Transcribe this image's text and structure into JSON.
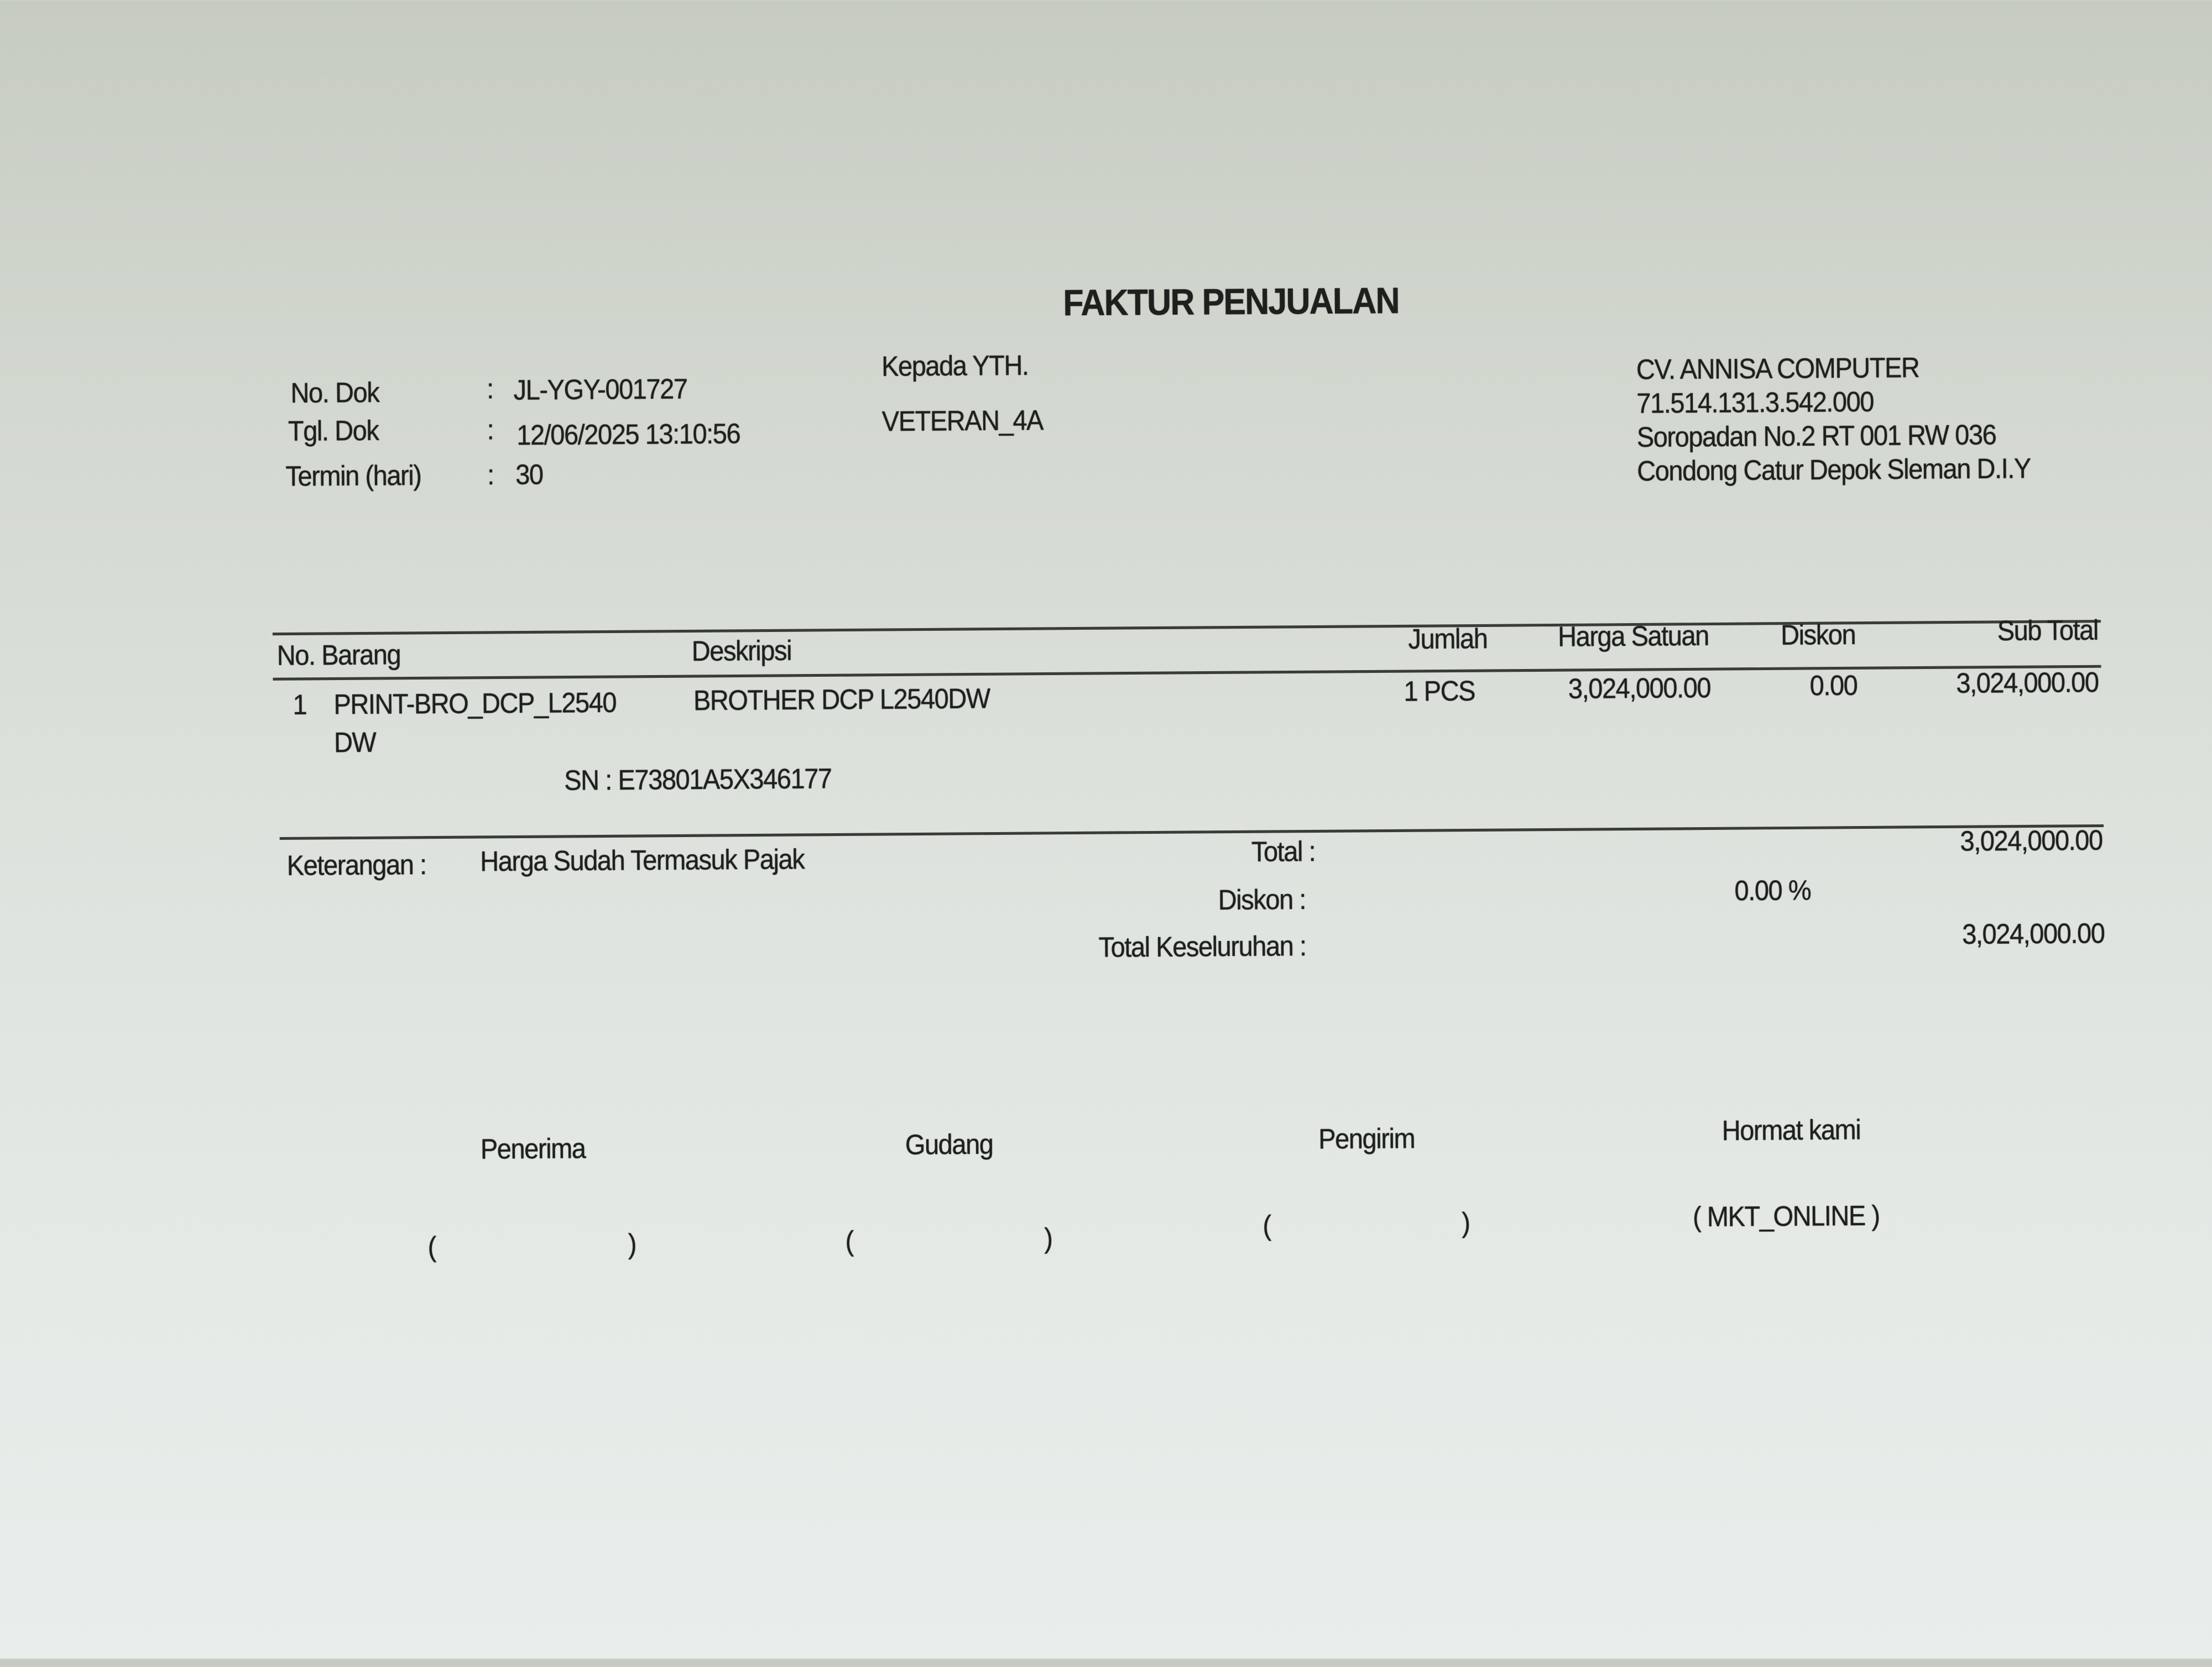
{
  "title": "FAKTUR PENJUALAN",
  "doc_info": {
    "no_dok_label": "No. Dok",
    "no_dok": "JL-YGY-001727",
    "tgl_dok_label": "Tgl. Dok",
    "tgl_dok": "12/06/2025 13:10:56",
    "termin_label": "Termin (hari)",
    "termin": "30",
    "separator": ":"
  },
  "recipient": {
    "label": "Kepada YTH.",
    "name": "VETERAN_4A"
  },
  "company": {
    "name": "CV. ANNISA COMPUTER",
    "tax_id": "71.514.131.3.542.000",
    "address_line1": "Soropadan No.2  RT 001 RW 036",
    "address_line2": "Condong Catur Depok Sleman D.I.Y"
  },
  "table": {
    "headers": {
      "no_barang": "No. Barang",
      "deskripsi": "Deskripsi",
      "jumlah": "Jumlah",
      "harga_satuan": "Harga Satuan",
      "diskon": "Diskon",
      "sub_total": "Sub Total"
    },
    "rows": [
      {
        "no": "1",
        "kode": "PRINT-BRO_DCP_L2540",
        "kode_cont": "DW",
        "deskripsi": "BROTHER DCP L2540DW",
        "jumlah": "1 PCS",
        "harga_satuan": "3,024,000.00",
        "diskon": "0.00",
        "sub_total": "3,024,000.00",
        "sn": "SN  : E73801A5X346177"
      }
    ]
  },
  "summary": {
    "keterangan_label": "Keterangan :",
    "keterangan": "Harga Sudah Termasuk Pajak",
    "total_label": "Total :",
    "total": "3,024,000.00",
    "diskon_label": "Diskon :",
    "diskon": "0.00  %",
    "grand_total_label": "Total Keseluruhan :",
    "grand_total": "3,024,000.00"
  },
  "signatures": {
    "penerima": "Penerima",
    "gudang": "Gudang",
    "pengirim": "Pengirim",
    "hormat_kami": "Hormat kami",
    "open_paren": "(",
    "close_paren": ")",
    "hormat_name": "( MKT_ONLINE )"
  }
}
